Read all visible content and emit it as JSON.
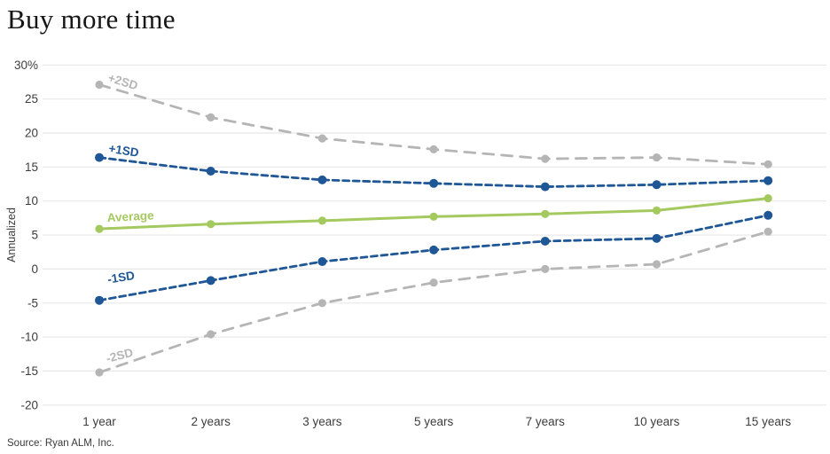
{
  "page": {
    "title": "Buy more time",
    "ylabel": "Annualized",
    "source": "Source: Ryan ALM, Inc."
  },
  "chart_data": {
    "type": "line",
    "title": "Buy more time",
    "xlabel": "",
    "ylabel": "Annualized",
    "ylim": [
      -20,
      30
    ],
    "grid": "horizontal",
    "legend": "inline-series-labels",
    "categories": [
      "1 year",
      "2 years",
      "3 years",
      "5 years",
      "7 years",
      "10 years",
      "15 years"
    ],
    "y_ticks": [
      30,
      25,
      20,
      15,
      10,
      5,
      0,
      -5,
      -10,
      -15,
      -20
    ],
    "y_tick_labels": [
      "30%",
      "25",
      "20",
      "15",
      "10",
      "5",
      "0",
      "-5",
      "-10",
      "-15",
      "-20"
    ],
    "colors": {
      "band2sd": "#b5b5b5",
      "band1sd": "#1f5796",
      "average": "#a4c95f",
      "gridline": "#e8e8e8",
      "tick_text": "#3d3d3d"
    },
    "series": [
      {
        "name": "+2SD",
        "color": "#b5b5b5",
        "style": "dashed-long",
        "values": [
          27.1,
          22.3,
          19.2,
          17.6,
          16.2,
          16.4,
          15.4
        ]
      },
      {
        "name": "+1SD",
        "color": "#1f5796",
        "style": "dashed",
        "values": [
          16.4,
          14.4,
          13.1,
          12.6,
          12.1,
          12.4,
          13.0
        ]
      },
      {
        "name": "Average",
        "color": "#a4c95f",
        "style": "solid",
        "values": [
          5.9,
          6.6,
          7.1,
          7.7,
          8.1,
          8.6,
          10.4
        ]
      },
      {
        "name": "-1SD",
        "color": "#1f5796",
        "style": "dashed",
        "values": [
          -4.6,
          -1.7,
          1.1,
          2.8,
          4.1,
          4.5,
          7.9
        ]
      },
      {
        "name": "-2SD",
        "color": "#b5b5b5",
        "style": "dashed-long",
        "values": [
          -15.2,
          -9.6,
          -5.0,
          -2.0,
          0.0,
          0.7,
          5.5
        ]
      }
    ]
  }
}
